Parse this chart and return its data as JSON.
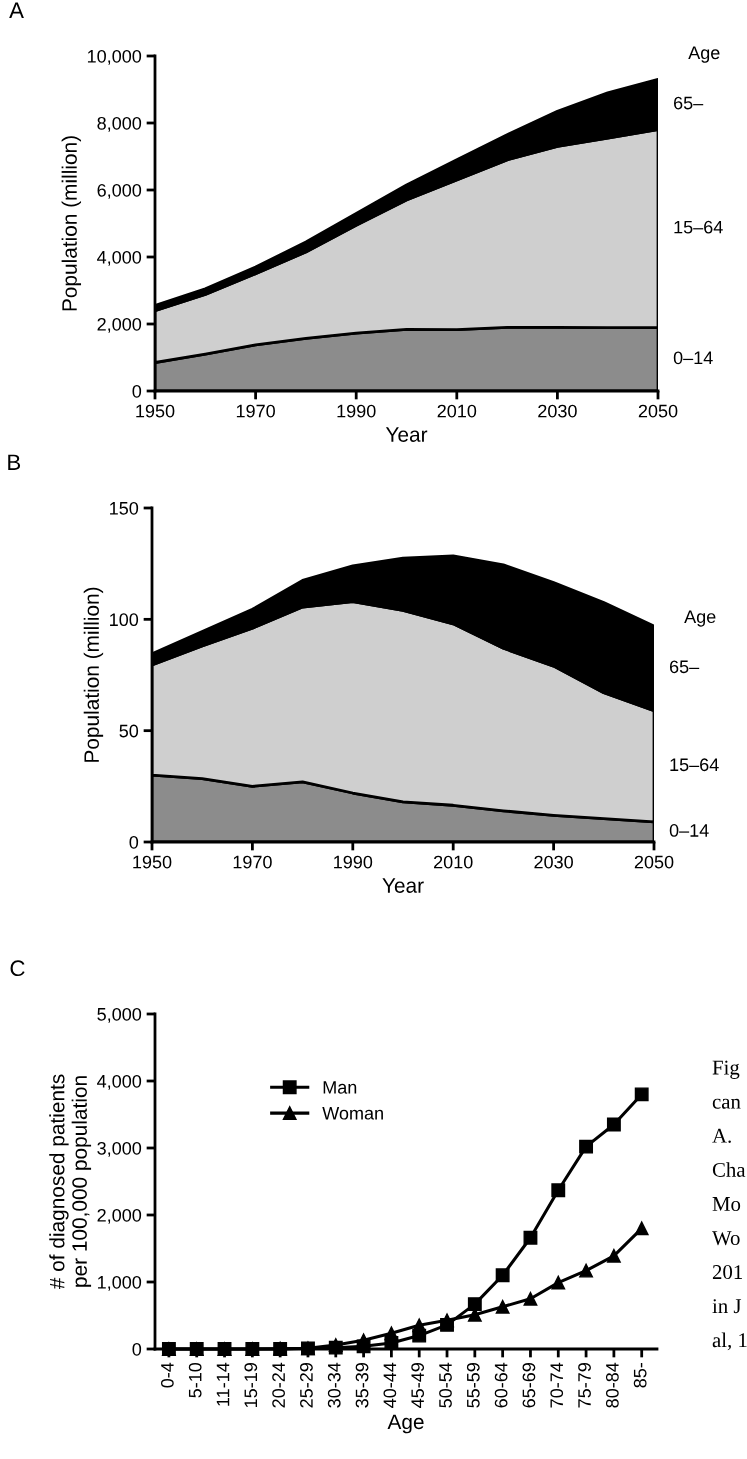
{
  "chart_data": [
    {
      "type": "area",
      "title": "A",
      "xlabel": "Year",
      "ylabel": "Population (million)",
      "legend_title": "Age",
      "stacked": true,
      "x": [
        1950,
        1960,
        1970,
        1980,
        1990,
        2000,
        2010,
        2020,
        2030,
        2040,
        2050
      ],
      "xlim": [
        1950,
        2050
      ],
      "xticks": [
        1950,
        1970,
        1990,
        2010,
        2030,
        2050
      ],
      "ylim": [
        0,
        10000
      ],
      "yticks": [
        0,
        {
          "value": 2000,
          "label": "2,000"
        },
        {
          "value": 4000,
          "label": "4,000"
        },
        {
          "value": 6000,
          "label": "6,000"
        },
        {
          "value": 8000,
          "label": "8,000"
        },
        {
          "value": 10000,
          "label": "10,000"
        }
      ],
      "series": [
        {
          "name": "0–14",
          "color": "#8c8c8c",
          "values": [
            850,
            1100,
            1380,
            1570,
            1730,
            1840,
            1830,
            1900,
            1900,
            1890,
            1890
          ]
        },
        {
          "name": "15–64",
          "color": "#cfcfcf",
          "values": [
            1550,
            1780,
            2120,
            2580,
            3220,
            3860,
            4470,
            5000,
            5400,
            5660,
            5910
          ]
        },
        {
          "name": "65–",
          "color": "#000000",
          "values": [
            150,
            170,
            200,
            300,
            350,
            450,
            600,
            750,
            1050,
            1350,
            1500
          ]
        }
      ]
    },
    {
      "type": "area",
      "title": "B",
      "xlabel": "Year",
      "ylabel": "Population (million)",
      "legend_title": "Age",
      "stacked": true,
      "x": [
        1950,
        1960,
        1970,
        1980,
        1990,
        2000,
        2010,
        2020,
        2030,
        2040,
        2050
      ],
      "xlim": [
        1950,
        2050
      ],
      "xticks": [
        1950,
        1970,
        1990,
        2010,
        2030,
        2050
      ],
      "ylim": [
        0,
        150
      ],
      "yticks": [
        0,
        50,
        100,
        150
      ],
      "series": [
        {
          "name": "0–14",
          "color": "#8c8c8c",
          "values": [
            30,
            28.5,
            25,
            27,
            22,
            18,
            16.5,
            14,
            12,
            10.5,
            9
          ]
        },
        {
          "name": "15–64",
          "color": "#cfcfcf",
          "values": [
            49.5,
            59.5,
            71,
            78.5,
            86,
            86,
            81.5,
            73,
            67,
            56.5,
            50
          ]
        },
        {
          "name": "65–",
          "color": "#000000",
          "values": [
            5,
            6.5,
            8.5,
            12,
            16,
            23.5,
            30.5,
            37.5,
            37.5,
            40.5,
            38
          ]
        }
      ]
    },
    {
      "type": "line",
      "title": "C",
      "xlabel": "Age",
      "ylabel": "# of diagnosed patients\nper 100,000 population",
      "legend": "top left",
      "categories": [
        "0-4",
        "5-10",
        "11-14",
        "15-19",
        "20-24",
        "25-29",
        "30-34",
        "35-39",
        "40-44",
        "45-49",
        "50-54",
        "55-59",
        "60-64",
        "65-69",
        "70-74",
        "75-79",
        "80-84",
        "85-"
      ],
      "ylim": [
        0,
        5000
      ],
      "yticks": [
        0,
        {
          "value": 1000,
          "label": "1,000"
        },
        {
          "value": 2000,
          "label": "2,000"
        },
        {
          "value": 3000,
          "label": "3,000"
        },
        {
          "value": 4000,
          "label": "4,000"
        },
        {
          "value": 5000,
          "label": "5,000"
        }
      ],
      "series": [
        {
          "name": "Man",
          "color": "#000000",
          "marker": "square",
          "values": [
            0,
            0,
            0,
            0,
            0,
            10,
            20,
            40,
            90,
            200,
            360,
            670,
            1100,
            1660,
            2370,
            3020,
            3350,
            3800
          ]
        },
        {
          "name": "Woman",
          "color": "#000000",
          "marker": "triangle",
          "values": [
            0,
            0,
            0,
            0,
            5,
            10,
            60,
            130,
            235,
            355,
            430,
            510,
            630,
            750,
            990,
            1170,
            1390,
            1800
          ]
        }
      ],
      "annotations": [
        "Fig\ncan\nA.\nCha\nMo\nWo\n201\nin J\nal, 1"
      ]
    }
  ]
}
